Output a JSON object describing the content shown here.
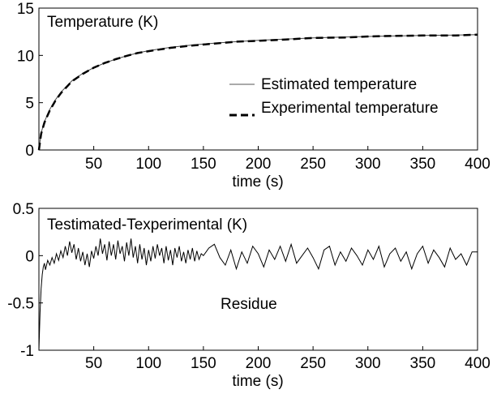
{
  "chart_data": [
    {
      "type": "line",
      "title": "Temperature (K)",
      "xlabel": "time (s)",
      "ylabel": "",
      "xlim": [
        0,
        400
      ],
      "ylim": [
        0,
        15
      ],
      "xticks": [
        "50",
        "100",
        "150",
        "200",
        "250",
        "300",
        "350",
        "400"
      ],
      "yticks": [
        "0",
        "5",
        "10",
        "15"
      ],
      "grid": false,
      "legend": "right",
      "series": [
        {
          "name": "Estimated temperature",
          "style": "solid-thin",
          "x": [
            0,
            2,
            5,
            10,
            15,
            20,
            30,
            40,
            50,
            60,
            70,
            80,
            90,
            100,
            120,
            140,
            160,
            180,
            200,
            220,
            250,
            280,
            300,
            320,
            350,
            380,
            400
          ],
          "y": [
            0,
            1.8,
            3.0,
            4.3,
            5.3,
            6.1,
            7.3,
            8.1,
            8.7,
            9.2,
            9.6,
            9.95,
            10.25,
            10.5,
            10.85,
            11.1,
            11.3,
            11.45,
            11.6,
            11.7,
            11.85,
            11.95,
            12.0,
            12.05,
            12.1,
            12.15,
            12.2
          ]
        },
        {
          "name": "Experimental temperature",
          "style": "dashed-bold",
          "x": [
            0,
            2,
            5,
            10,
            15,
            20,
            30,
            40,
            50,
            60,
            70,
            80,
            90,
            100,
            120,
            140,
            160,
            180,
            200,
            220,
            250,
            280,
            300,
            320,
            350,
            380,
            400
          ],
          "y": [
            0,
            1.7,
            2.9,
            4.2,
            5.2,
            6.0,
            7.25,
            8.05,
            8.7,
            9.2,
            9.6,
            9.95,
            10.25,
            10.45,
            10.8,
            11.05,
            11.25,
            11.45,
            11.55,
            11.65,
            11.85,
            11.9,
            12.0,
            12.05,
            12.1,
            12.1,
            12.2
          ]
        }
      ]
    },
    {
      "type": "line",
      "title": "Testimated-Texperimental (K)",
      "annotation": "Residue",
      "xlabel": "time (s)",
      "ylabel": "",
      "xlim": [
        0,
        400
      ],
      "ylim": [
        -1,
        0.5
      ],
      "xticks": [
        "50",
        "100",
        "150",
        "200",
        "250",
        "300",
        "350",
        "400"
      ],
      "yticks": [
        "-1",
        "-0.5",
        "0",
        "0.5"
      ],
      "grid": false,
      "series": [
        {
          "name": "",
          "style": "solid-thin",
          "x": [
            0,
            1,
            2,
            3,
            4,
            5,
            6,
            8,
            10,
            12,
            14,
            16,
            18,
            20,
            22,
            24,
            26,
            28,
            30,
            32,
            34,
            36,
            38,
            40,
            42,
            44,
            46,
            48,
            50,
            52,
            54,
            56,
            58,
            60,
            62,
            64,
            66,
            68,
            70,
            72,
            74,
            76,
            78,
            80,
            82,
            84,
            86,
            88,
            90,
            92,
            94,
            96,
            98,
            100,
            102,
            104,
            106,
            108,
            110,
            112,
            114,
            116,
            118,
            120,
            122,
            124,
            126,
            128,
            130,
            132,
            134,
            136,
            138,
            140,
            142,
            144,
            146,
            148,
            150,
            155,
            160,
            165,
            170,
            175,
            180,
            185,
            190,
            195,
            200,
            205,
            210,
            215,
            220,
            225,
            230,
            235,
            240,
            245,
            250,
            255,
            260,
            265,
            270,
            275,
            280,
            285,
            290,
            295,
            300,
            305,
            310,
            315,
            320,
            325,
            330,
            335,
            340,
            345,
            350,
            355,
            360,
            365,
            370,
            375,
            380,
            385,
            390,
            395,
            400
          ],
          "y": [
            -1.0,
            -0.6,
            -0.35,
            -0.2,
            -0.12,
            -0.08,
            -0.15,
            -0.05,
            -0.1,
            -0.02,
            -0.08,
            0.02,
            -0.05,
            0.05,
            -0.02,
            0.1,
            0.0,
            0.15,
            0.03,
            0.12,
            -0.04,
            0.08,
            -0.06,
            0.04,
            -0.1,
            0.02,
            -0.12,
            0.05,
            -0.03,
            0.1,
            0.0,
            0.18,
            0.02,
            0.12,
            -0.05,
            0.15,
            0.0,
            0.12,
            -0.04,
            0.16,
            0.02,
            0.1,
            -0.06,
            0.14,
            0.0,
            0.18,
            -0.02,
            0.1,
            -0.08,
            0.12,
            -0.04,
            0.08,
            -0.1,
            0.06,
            -0.06,
            0.1,
            -0.03,
            0.12,
            0.0,
            0.08,
            -0.08,
            0.1,
            -0.05,
            0.06,
            -0.1,
            0.08,
            -0.02,
            0.1,
            -0.06,
            0.04,
            -0.08,
            0.06,
            -0.04,
            0.08,
            -0.06,
            0.05,
            -0.04,
            0.02,
            0.0,
            0.08,
            0.12,
            -0.02,
            -0.1,
            0.06,
            -0.14,
            0.04,
            -0.08,
            0.1,
            0.02,
            -0.12,
            0.06,
            -0.04,
            0.1,
            -0.06,
            0.12,
            -0.08,
            0.0,
            0.08,
            -0.02,
            -0.14,
            0.06,
            0.1,
            -0.1,
            0.04,
            -0.06,
            0.08,
            0.0,
            -0.1,
            0.06,
            -0.04,
            0.1,
            -0.12,
            0.02,
            0.08,
            -0.06,
            0.04,
            -0.14,
            0.02,
            0.1,
            -0.08,
            0.06,
            -0.02,
            -0.12,
            0.08,
            -0.04,
            0.02,
            -0.1,
            0.04,
            0.04
          ]
        }
      ]
    }
  ]
}
